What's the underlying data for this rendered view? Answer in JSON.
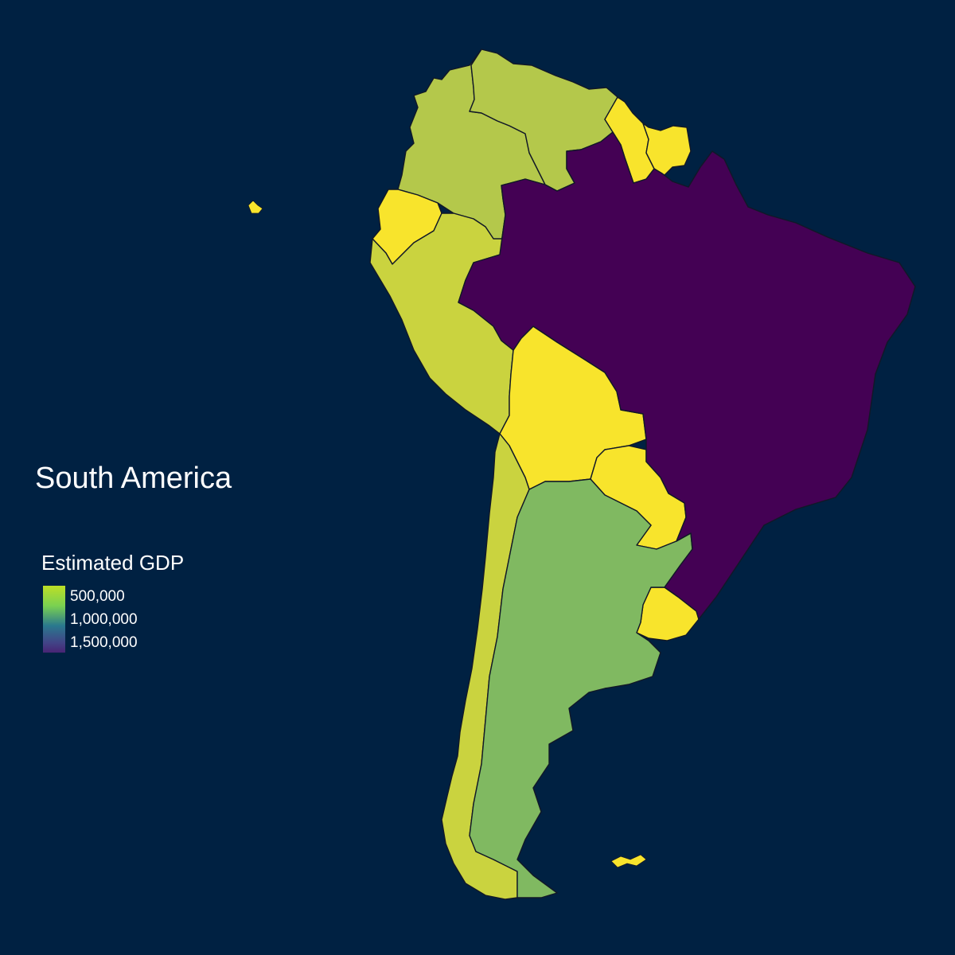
{
  "map": {
    "title": "South America",
    "background_color": "#002142",
    "border_color": "#111827"
  },
  "legend": {
    "title": "Estimated GDP",
    "ticks": [
      "500,000",
      "1,000,000",
      "1,500,000"
    ],
    "scale": "viridis",
    "direction": "reversed",
    "gradient_colors": [
      "#bddf26",
      "#7ad151",
      "#2a788e",
      "#414487",
      "#482475"
    ]
  },
  "chart_data": {
    "type": "choropleth",
    "title": "South America",
    "legend_title": "Estimated GDP",
    "legend_ticks": [
      500000,
      1000000,
      1500000
    ],
    "regions": [
      {
        "name": "Brazil",
        "fill": "#440154",
        "value_approx": 1800000
      },
      {
        "name": "Argentina",
        "fill": "#80b961",
        "value_approx": 880000
      },
      {
        "name": "Colombia",
        "fill": "#b4c84b",
        "value_approx": 690000
      },
      {
        "name": "Venezuela",
        "fill": "#b4c84b",
        "value_approx": 470000
      },
      {
        "name": "Chile",
        "fill": "#cad33f",
        "value_approx": 430000
      },
      {
        "name": "Peru",
        "fill": "#cad33f",
        "value_approx": 410000
      },
      {
        "name": "Ecuador",
        "fill": "#f8e42c",
        "value_approx": 180000
      },
      {
        "name": "Bolivia",
        "fill": "#f8e42c",
        "value_approx": 80000
      },
      {
        "name": "Paraguay",
        "fill": "#f8e42c",
        "value_approx": 70000
      },
      {
        "name": "Uruguay",
        "fill": "#f8e42c",
        "value_approx": 75000
      },
      {
        "name": "Guyana",
        "fill": "#f8e42c",
        "value_approx": 6000
      },
      {
        "name": "Suriname",
        "fill": "#f8e42c",
        "value_approx": 9000
      },
      {
        "name": "Falkland Islands",
        "fill": "#f8e42c",
        "value_approx": 300
      }
    ]
  }
}
